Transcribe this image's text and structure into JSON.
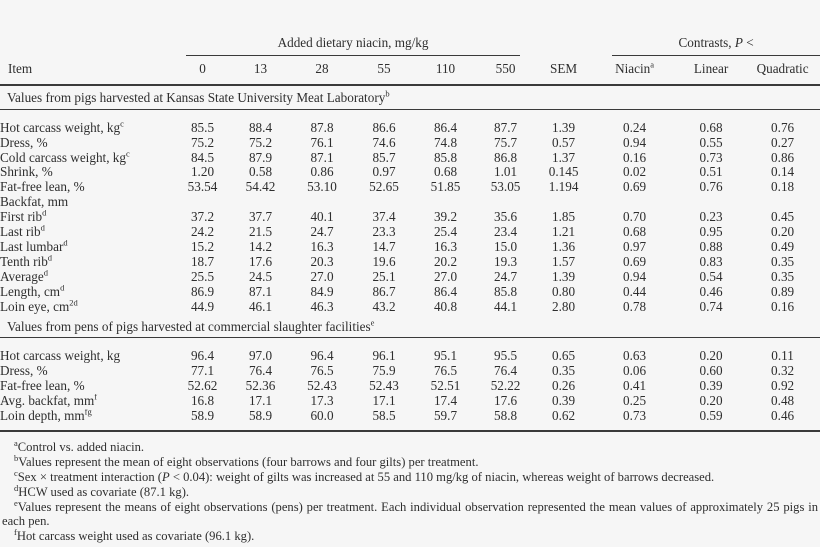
{
  "page": {
    "background_color": "#f6f6f6",
    "text_color": "#2e2e2e",
    "rule_color": "#3a3a3a"
  },
  "header": {
    "dose_spanner": "Added dietary niacin, mg/kg",
    "contrasts_prefix": "Contrasts, ",
    "contrasts_p": "P",
    "contrasts_suffix": " <",
    "columns": {
      "item": "Item",
      "d0": "0",
      "d13": "13",
      "d28": "28",
      "d55": "55",
      "d110": "110",
      "d550": "550",
      "sem": "SEM",
      "niacin": "Niacin",
      "niacin_sup": "a",
      "linear": "Linear",
      "quadratic": "Quadratic"
    }
  },
  "sections": [
    {
      "title": "Values from pigs harvested at Kansas State University Meat Laboratory",
      "sup": "b",
      "rows": [
        {
          "label": "Hot carcass weight, kg",
          "sup": "c",
          "values": [
            "85.5",
            "88.4",
            "87.8",
            "86.6",
            "86.4",
            "87.7",
            "1.39",
            "0.24",
            "0.68",
            "0.76"
          ]
        },
        {
          "label": "Dress, %",
          "sup": "",
          "values": [
            "75.2",
            "75.2",
            "76.1",
            "74.6",
            "74.8",
            "75.7",
            "0.57",
            "0.94",
            "0.55",
            "0.27"
          ]
        },
        {
          "label": "Cold carcass weight, kg",
          "sup": "c",
          "values": [
            "84.5",
            "87.9",
            "87.1",
            "85.7",
            "85.8",
            "86.8",
            "1.37",
            "0.16",
            "0.73",
            "0.86"
          ]
        },
        {
          "label": "Shrink, %",
          "sup": "",
          "values": [
            "1.20",
            "0.58",
            "0.86",
            "0.97",
            "0.68",
            "1.01",
            "0.145",
            "0.02",
            "0.51",
            "0.14"
          ]
        },
        {
          "label": "Fat-free lean, %",
          "sup": "",
          "values": [
            "53.54",
            "54.42",
            "53.10",
            "52.65",
            "51.85",
            "53.05",
            "1.194",
            "0.69",
            "0.76",
            "0.18"
          ]
        },
        {
          "label": "Backfat, mm",
          "sup": "",
          "values": []
        },
        {
          "label": "First rib",
          "sup": "d",
          "values": [
            "37.2",
            "37.7",
            "40.1",
            "37.4",
            "39.2",
            "35.6",
            "1.85",
            "0.70",
            "0.23",
            "0.45"
          ]
        },
        {
          "label": "Last rib",
          "sup": "d",
          "values": [
            "24.2",
            "21.5",
            "24.7",
            "23.3",
            "25.4",
            "23.4",
            "1.21",
            "0.68",
            "0.95",
            "0.20"
          ]
        },
        {
          "label": "Last lumbar",
          "sup": "d",
          "values": [
            "15.2",
            "14.2",
            "16.3",
            "14.7",
            "16.3",
            "15.0",
            "1.36",
            "0.97",
            "0.88",
            "0.49"
          ]
        },
        {
          "label": "Tenth rib",
          "sup": "d",
          "values": [
            "18.7",
            "17.6",
            "20.3",
            "19.6",
            "20.2",
            "19.3",
            "1.57",
            "0.69",
            "0.83",
            "0.35"
          ]
        },
        {
          "label": "Average",
          "sup": "d",
          "values": [
            "25.5",
            "24.5",
            "27.0",
            "25.1",
            "27.0",
            "24.7",
            "1.39",
            "0.94",
            "0.54",
            "0.35"
          ]
        },
        {
          "label": "Length, cm",
          "sup": "d",
          "values": [
            "86.9",
            "87.1",
            "84.9",
            "86.7",
            "86.4",
            "85.8",
            "0.80",
            "0.44",
            "0.46",
            "0.89"
          ]
        },
        {
          "label": "Loin eye, cm",
          "sup": "2d",
          "values": [
            "44.9",
            "46.1",
            "46.3",
            "43.2",
            "40.8",
            "44.1",
            "2.80",
            "0.78",
            "0.74",
            "0.16"
          ]
        }
      ]
    },
    {
      "title": "Values from pens of pigs harvested at commercial slaughter facilities",
      "sup": "e",
      "rows": [
        {
          "label": "Hot carcass weight, kg",
          "sup": "",
          "values": [
            "96.4",
            "97.0",
            "96.4",
            "96.1",
            "95.1",
            "95.5",
            "0.65",
            "0.63",
            "0.20",
            "0.11"
          ]
        },
        {
          "label": "Dress, %",
          "sup": "",
          "values": [
            "77.1",
            "76.4",
            "76.5",
            "75.9",
            "76.5",
            "76.4",
            "0.35",
            "0.06",
            "0.60",
            "0.32"
          ]
        },
        {
          "label": "Fat-free lean, %",
          "sup": "",
          "values": [
            "52.62",
            "52.36",
            "52.43",
            "52.43",
            "52.51",
            "52.22",
            "0.26",
            "0.41",
            "0.39",
            "0.92"
          ]
        },
        {
          "label": "Avg. backfat, mm",
          "sup": "f",
          "values": [
            "16.8",
            "17.1",
            "17.3",
            "17.1",
            "17.4",
            "17.6",
            "0.39",
            "0.25",
            "0.20",
            "0.48"
          ]
        },
        {
          "label": "Loin depth, mm",
          "sup": "fg",
          "values": [
            "58.9",
            "58.9",
            "60.0",
            "58.5",
            "59.7",
            "58.8",
            "0.62",
            "0.73",
            "0.59",
            "0.46"
          ]
        }
      ]
    }
  ],
  "footnotes": [
    {
      "sup": "a",
      "parts": [
        {
          "t": "Control vs. added niacin."
        }
      ]
    },
    {
      "sup": "b",
      "parts": [
        {
          "t": "Values represent the mean of eight observations (four barrows and four gilts) per treatment."
        }
      ]
    },
    {
      "sup": "c",
      "parts": [
        {
          "t": "Sex × treatment interaction ("
        },
        {
          "t": "P",
          "i": true
        },
        {
          "t": " < 0.04): weight of gilts was increased at 55 and 110 mg/kg of niacin, whereas weight of barrows decreased."
        }
      ]
    },
    {
      "sup": "d",
      "parts": [
        {
          "t": "HCW used as covariate (87.1 kg)."
        }
      ]
    },
    {
      "sup": "e",
      "parts": [
        {
          "t": "Values represent the means of eight observations (pens) per treatment. Each individual observation represented the mean values of approximately 25 pigs in each pen."
        }
      ]
    },
    {
      "sup": "f",
      "parts": [
        {
          "t": "Hot carcass weight used as covariate (96.1 kg)."
        }
      ]
    }
  ]
}
